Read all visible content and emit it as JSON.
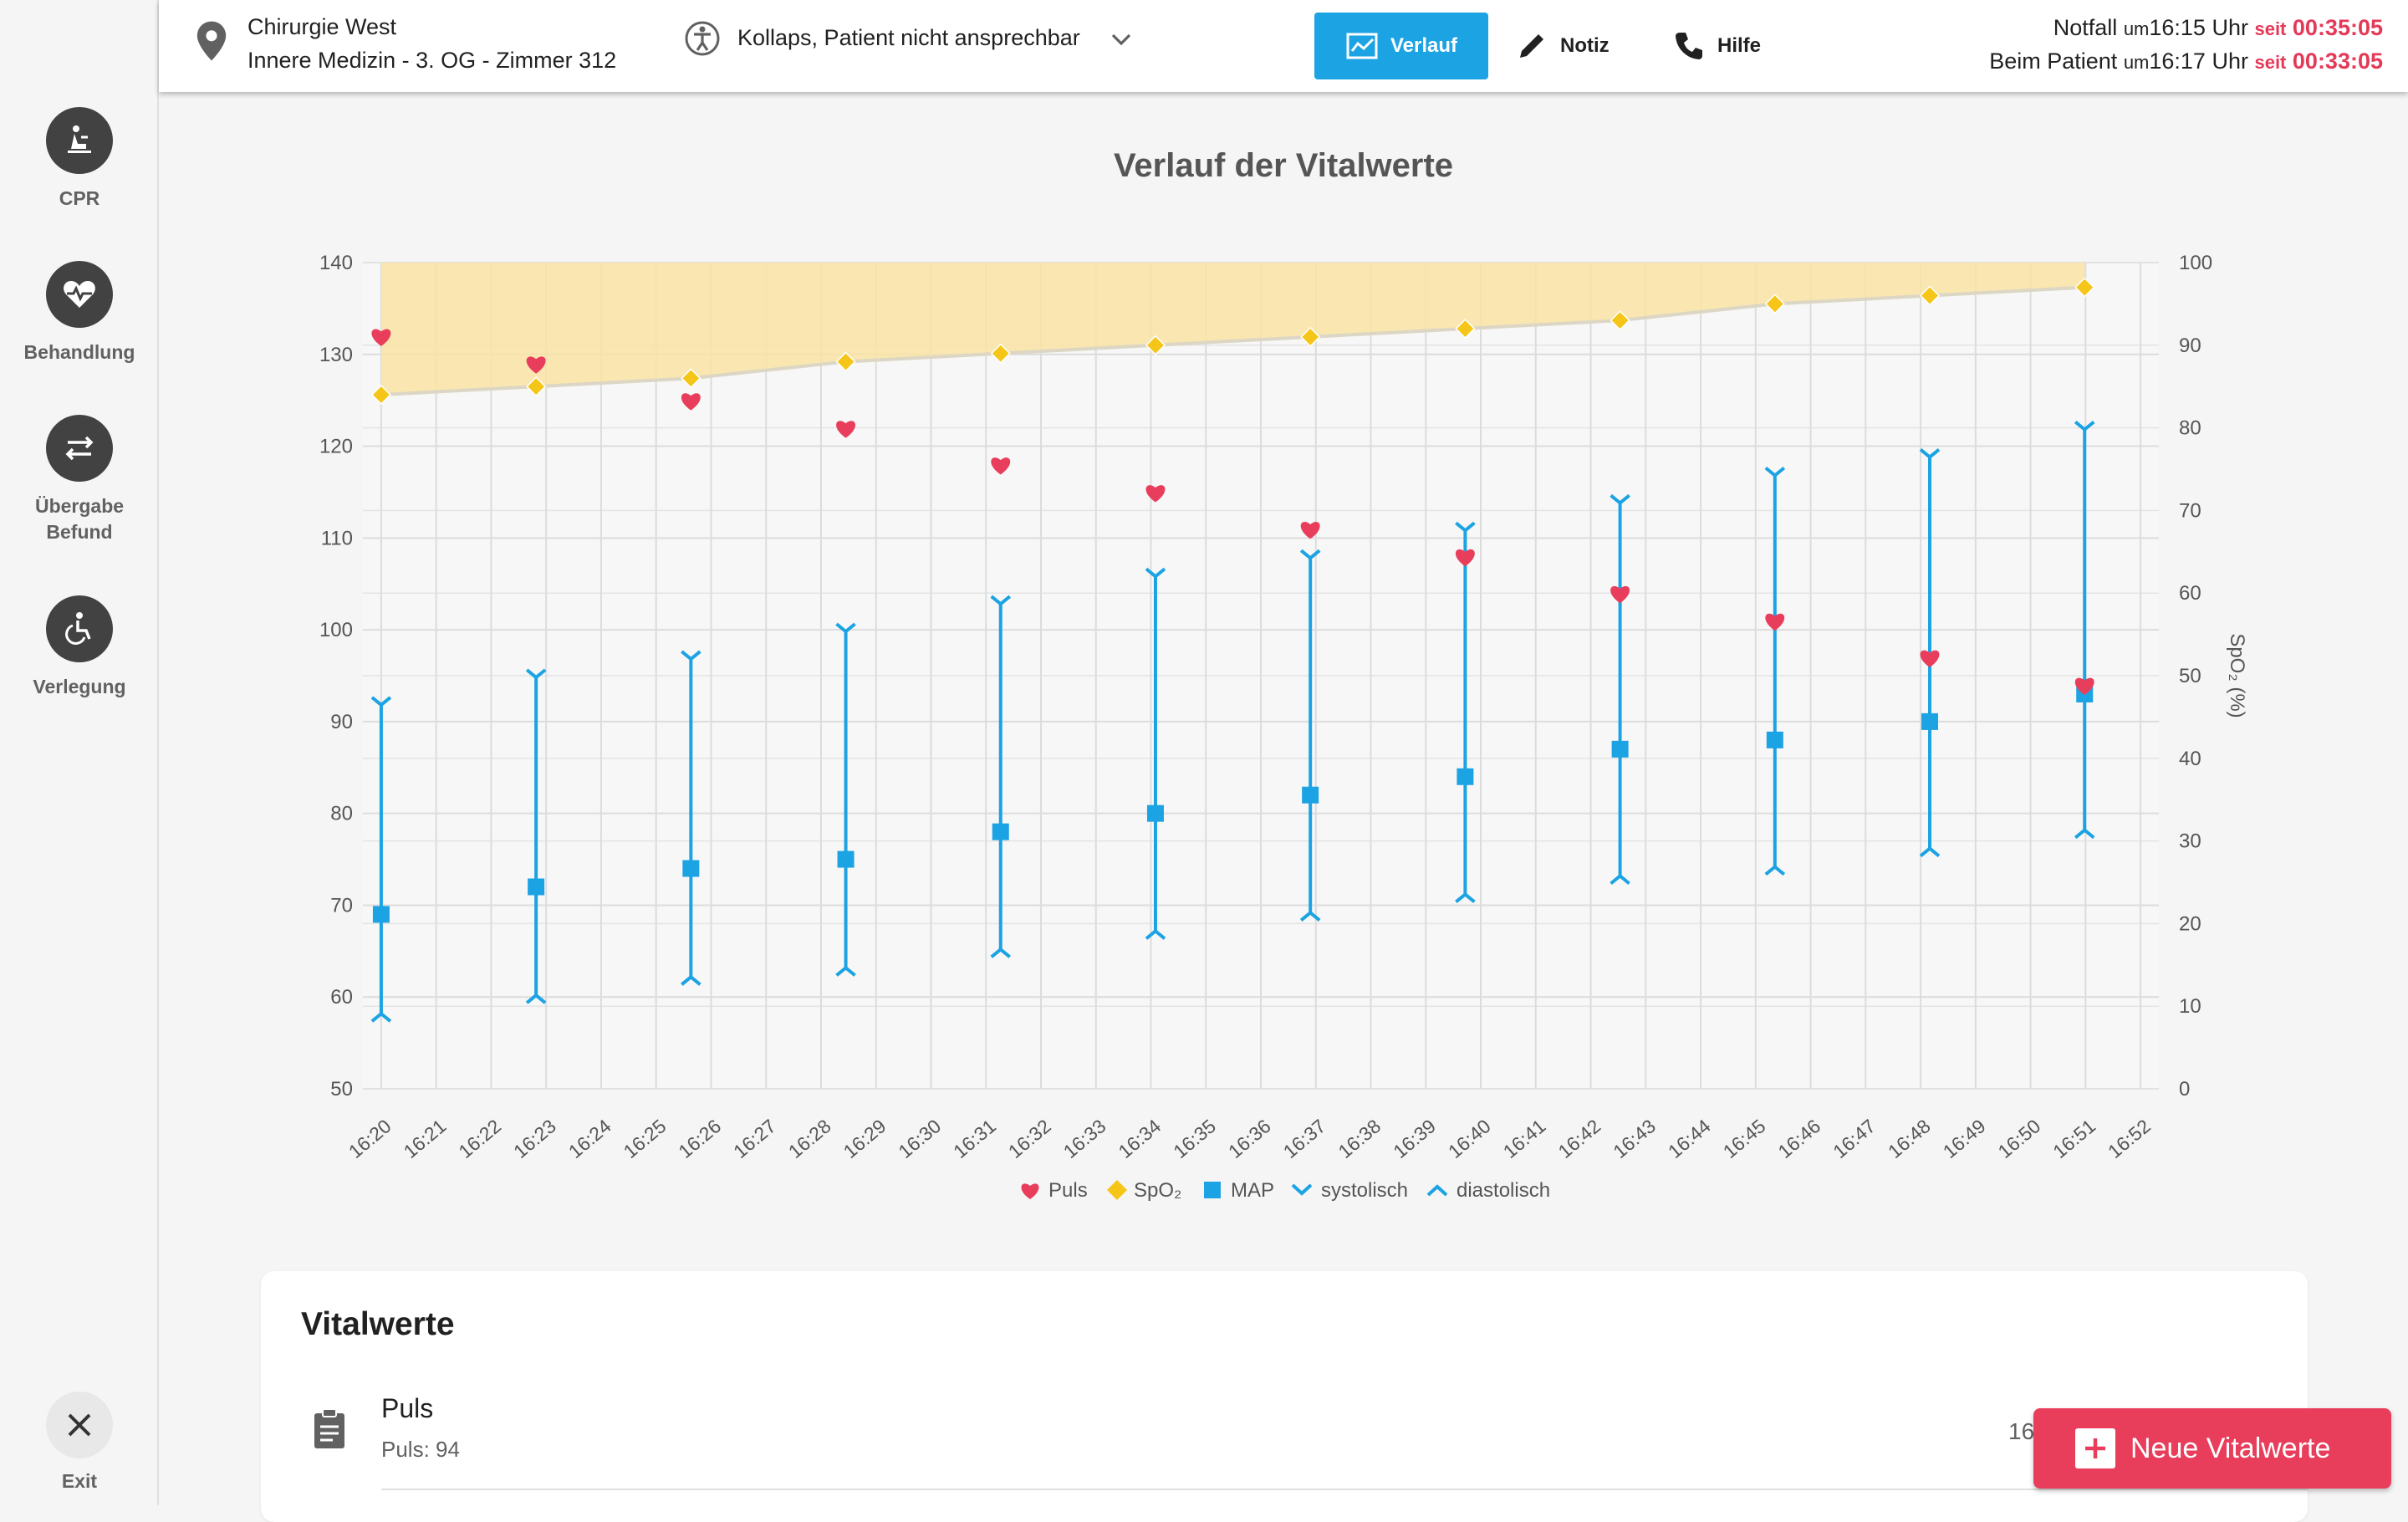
{
  "sidebar": {
    "items": [
      {
        "label": "CPR",
        "icon": "cpr-icon"
      },
      {
        "label": "Behandlung",
        "icon": "heart-pulse-icon"
      },
      {
        "label_line1": "Übergabe",
        "label_line2": "Befund",
        "icon": "swap-arrows-icon"
      },
      {
        "label": "Verlegung",
        "icon": "wheelchair-icon"
      }
    ],
    "exit_label": "Exit"
  },
  "header": {
    "location_line1": "Chirurgie West",
    "location_line2": "Innere Medizin - 3. OG - Zimmer 312",
    "case": "Kollaps, Patient nicht ansprechbar",
    "buttons": {
      "verlauf": "Verlauf",
      "notiz": "Notiz",
      "hilfe": "Hilfe"
    },
    "times": [
      {
        "label": "Notfall",
        "um": "um",
        "time": "16:15 Uhr",
        "seit": "seit",
        "elapsed": "00:35:05"
      },
      {
        "label": "Beim Patient",
        "um": "um",
        "time": "16:17 Uhr",
        "seit": "seit",
        "elapsed": "00:33:05"
      }
    ],
    "colors": {
      "accent": "#1ca3e3",
      "alert": "#e53958"
    }
  },
  "chart_data": {
    "type": "scatter",
    "title": "Verlauf der Vitalwerte",
    "x_ticks": [
      "16:20",
      "16:21",
      "16:22",
      "16:23",
      "16:24",
      "16:25",
      "16:26",
      "16:27",
      "16:28",
      "16:29",
      "16:30",
      "16:31",
      "16:32",
      "16:33",
      "16:34",
      "16:35",
      "16:36",
      "16:37",
      "16:38",
      "16:39",
      "16:40",
      "16:41",
      "16:42",
      "16:43",
      "16:44",
      "16:45",
      "16:46",
      "16:47",
      "16:48",
      "16:49",
      "16:50",
      "16:51",
      "16:52"
    ],
    "x_range": [
      "16:19:40",
      "16:52:20"
    ],
    "y_left": {
      "range": [
        50,
        140
      ],
      "ticks": [
        50,
        60,
        70,
        80,
        90,
        100,
        110,
        120,
        130,
        140
      ]
    },
    "y_right": {
      "label": "SpO₂ (%)",
      "range": [
        0,
        100
      ],
      "ticks": [
        0,
        10,
        20,
        30,
        40,
        50,
        60,
        70,
        80,
        90,
        100
      ]
    },
    "x": [
      "16:20:00",
      "16:22:49",
      "16:25:38",
      "16:28:27",
      "16:31:16",
      "16:34:05",
      "16:36:54",
      "16:39:43",
      "16:42:32",
      "16:45:21",
      "16:48:10",
      "16:50:59"
    ],
    "series": [
      {
        "name": "Puls",
        "axis": "left",
        "marker": "heart",
        "color": "#e83e5c",
        "values": [
          132,
          129,
          125,
          122,
          118,
          115,
          111,
          108,
          104,
          101,
          97,
          94
        ]
      },
      {
        "name": "SpO₂",
        "axis": "right",
        "marker": "diamond",
        "color": "#f5c518",
        "area": true,
        "values": [
          84,
          85,
          86,
          88,
          89,
          90,
          91,
          92,
          93,
          95,
          96,
          97
        ]
      },
      {
        "name": "MAP",
        "axis": "left",
        "marker": "square",
        "color": "#1ca3e3",
        "values": [
          69,
          72,
          74,
          75,
          78,
          80,
          82,
          84,
          87,
          88,
          90,
          93
        ]
      },
      {
        "name": "systolisch",
        "axis": "left",
        "marker": "chevron-down",
        "color": "#1ca3e3",
        "values": [
          92,
          95,
          97,
          100,
          103,
          106,
          108,
          111,
          114,
          117,
          119,
          122
        ]
      },
      {
        "name": "diastolisch",
        "axis": "left",
        "marker": "chevron-up",
        "color": "#1ca3e3",
        "values": [
          58,
          60,
          62,
          63,
          65,
          67,
          69,
          71,
          73,
          74,
          76,
          78
        ]
      }
    ],
    "legend": [
      "Puls",
      "SpO₂",
      "MAP",
      "systolisch",
      "diastolisch"
    ],
    "legend_position": "bottom",
    "grid": true
  },
  "vitals_card": {
    "title": "Vitalwerte",
    "row": {
      "title": "Puls",
      "subtitle": "Puls: 94",
      "time_partial": "16"
    }
  },
  "fab": {
    "label": "Neue Vitalwerte"
  }
}
